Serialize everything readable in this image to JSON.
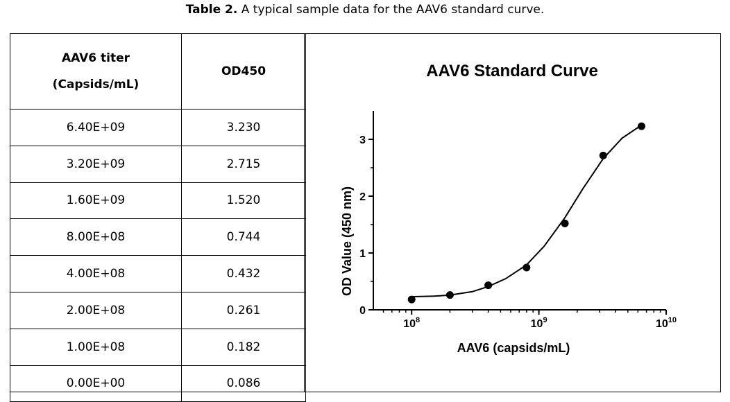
{
  "caption": {
    "label": "Table 2.",
    "text": " A typical sample data for the AAV6 standard curve."
  },
  "table": {
    "headers": {
      "titer_line1": "AAV6 titer",
      "titer_line2": "(Capsids/mL)",
      "od": "OD450"
    },
    "rows": [
      {
        "titer": "6.40E+09",
        "od": "3.230"
      },
      {
        "titer": "3.20E+09",
        "od": "2.715"
      },
      {
        "titer": "1.60E+09",
        "od": "1.520"
      },
      {
        "titer": "8.00E+08",
        "od": "0.744"
      },
      {
        "titer": "4.00E+08",
        "od": "0.432"
      },
      {
        "titer": "2.00E+08",
        "od": "0.261"
      },
      {
        "titer": "1.00E+08",
        "od": "0.182"
      },
      {
        "titer": "0.00E+00",
        "od": "0.086"
      }
    ]
  },
  "chart_data": {
    "type": "scatter",
    "title": "AAV6 Standard Curve",
    "xlabel": "AAV6 (capsids/mL)",
    "ylabel": "OD Value (450 nm)",
    "x_scale": "log",
    "xlim": [
      50000000,
      10000000000
    ],
    "ylim": [
      0,
      3.5
    ],
    "x_ticks": [
      100000000,
      1000000000,
      10000000000
    ],
    "x_tick_labels": [
      {
        "base": "10",
        "exp": "8"
      },
      {
        "base": "10",
        "exp": "9"
      },
      {
        "base": "10",
        "exp": "10"
      }
    ],
    "y_ticks": [
      0,
      1,
      2,
      3
    ],
    "y_tick_labels": [
      "0",
      "1",
      "2",
      "3"
    ],
    "grid": false,
    "series": [
      {
        "x": [
          100000000,
          200000000,
          400000000,
          800000000,
          1600000000,
          3200000000,
          6400000000
        ],
        "y": [
          0.182,
          0.261,
          0.432,
          0.744,
          1.52,
          2.715,
          3.23
        ]
      }
    ],
    "fit_curve": {
      "x": [
        100000000,
        150000000,
        200000000,
        300000000,
        400000000,
        550000000,
        800000000,
        1100000000,
        1600000000,
        2200000000,
        3200000000,
        4500000000,
        6400000000
      ],
      "y": [
        0.23,
        0.24,
        0.26,
        0.32,
        0.41,
        0.55,
        0.79,
        1.12,
        1.62,
        2.12,
        2.66,
        3.02,
        3.25
      ]
    }
  }
}
